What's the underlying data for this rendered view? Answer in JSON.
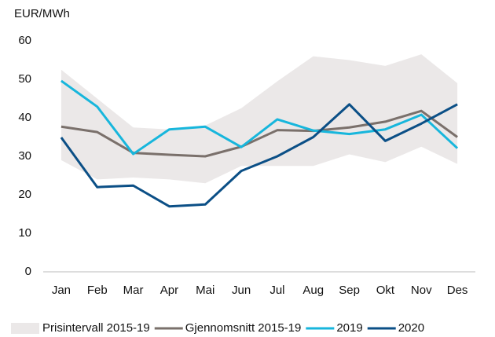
{
  "chart_data": {
    "type": "line",
    "ylabel": "EUR/MWh",
    "categories": [
      "Jan",
      "Feb",
      "Mar",
      "Apr",
      "Mai",
      "Jun",
      "Jul",
      "Aug",
      "Sep",
      "Okt",
      "Nov",
      "Des"
    ],
    "ylim": [
      0,
      60
    ],
    "yticks": [
      0,
      10,
      20,
      30,
      40,
      50,
      60
    ],
    "band": {
      "name": "Prisintervall 2015-19",
      "color": "#ebe8e8",
      "upper": [
        52.5,
        45,
        37.5,
        37,
        38,
        42.5,
        49.5,
        56,
        55,
        53.5,
        56.5,
        49
      ],
      "lower": [
        29,
        24,
        24.5,
        24,
        23,
        27.5,
        27.5,
        27.5,
        30.5,
        28.5,
        32.5,
        28
      ]
    },
    "series": [
      {
        "name": "Gjennomsnitt 2015-19",
        "color": "#7a706b",
        "values": [
          37.7,
          36.3,
          30.9,
          30.4,
          30.0,
          32.5,
          36.8,
          36.6,
          37.5,
          39.0,
          41.8,
          35.0
        ]
      },
      {
        "name": "2019",
        "color": "#17b6dc",
        "values": [
          49.6,
          42.9,
          30.6,
          37.0,
          37.7,
          32.4,
          39.6,
          36.7,
          35.8,
          37.0,
          40.8,
          32.1
        ]
      },
      {
        "name": "2020",
        "color": "#0b4f86",
        "values": [
          34.9,
          22.0,
          22.4,
          17.0,
          17.5,
          26.2,
          30.0,
          35.0,
          43.5,
          34.0,
          38.5,
          43.5
        ]
      }
    ]
  }
}
